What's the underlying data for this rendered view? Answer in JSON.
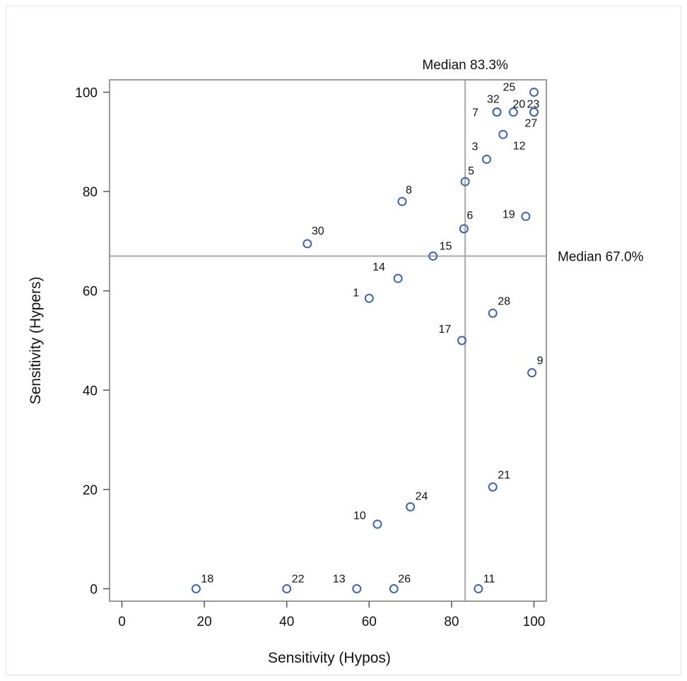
{
  "chart_data": {
    "type": "scatter",
    "xlabel": "Sensitivity (Hypos)",
    "ylabel": "Sensitivity (Hypers)",
    "xlim": [
      -3,
      103
    ],
    "ylim": [
      -2.5,
      102.5
    ],
    "xticks": [
      "0",
      "20",
      "40",
      "60",
      "80",
      "100"
    ],
    "yticks": [
      "0",
      "20",
      "40",
      "60",
      "80",
      "100"
    ],
    "grid": false,
    "marker_color": "#3b63b0",
    "reference_lines": [
      {
        "axis": "x",
        "value": 83.3,
        "label": "Median 83.3%"
      },
      {
        "axis": "y",
        "value": 67.0,
        "label": "Median 67.0%"
      }
    ],
    "points": [
      {
        "label": "25",
        "x": 100,
        "y": 100
      },
      {
        "label": "32",
        "x": 91,
        "y": 96
      },
      {
        "label": "7",
        "x": 91,
        "y": 96
      },
      {
        "label": "20",
        "x": 95,
        "y": 96
      },
      {
        "label": "23",
        "x": 100,
        "y": 96
      },
      {
        "label": "27",
        "x": 100,
        "y": 96
      },
      {
        "label": "12",
        "x": 92.5,
        "y": 91.5
      },
      {
        "label": "3",
        "x": 88.5,
        "y": 86.5
      },
      {
        "label": "5",
        "x": 83.3,
        "y": 82
      },
      {
        "label": "8",
        "x": 68,
        "y": 78
      },
      {
        "label": "19",
        "x": 98,
        "y": 75
      },
      {
        "label": "6",
        "x": 83,
        "y": 72.5
      },
      {
        "label": "30",
        "x": 45,
        "y": 69.5
      },
      {
        "label": "15",
        "x": 75.5,
        "y": 67
      },
      {
        "label": "14",
        "x": 67,
        "y": 62.5
      },
      {
        "label": "1",
        "x": 60,
        "y": 58.5
      },
      {
        "label": "28",
        "x": 90,
        "y": 55.5
      },
      {
        "label": "17",
        "x": 82.5,
        "y": 50
      },
      {
        "label": "9",
        "x": 99.5,
        "y": 43.5
      },
      {
        "label": "21",
        "x": 90,
        "y": 20.5
      },
      {
        "label": "24",
        "x": 70,
        "y": 16.5
      },
      {
        "label": "10",
        "x": 62,
        "y": 13
      },
      {
        "label": "18",
        "x": 18,
        "y": 0
      },
      {
        "label": "22",
        "x": 40,
        "y": 0
      },
      {
        "label": "13",
        "x": 57,
        "y": 0
      },
      {
        "label": "26",
        "x": 66,
        "y": 0
      },
      {
        "label": "11",
        "x": 86.5,
        "y": 0
      }
    ]
  }
}
